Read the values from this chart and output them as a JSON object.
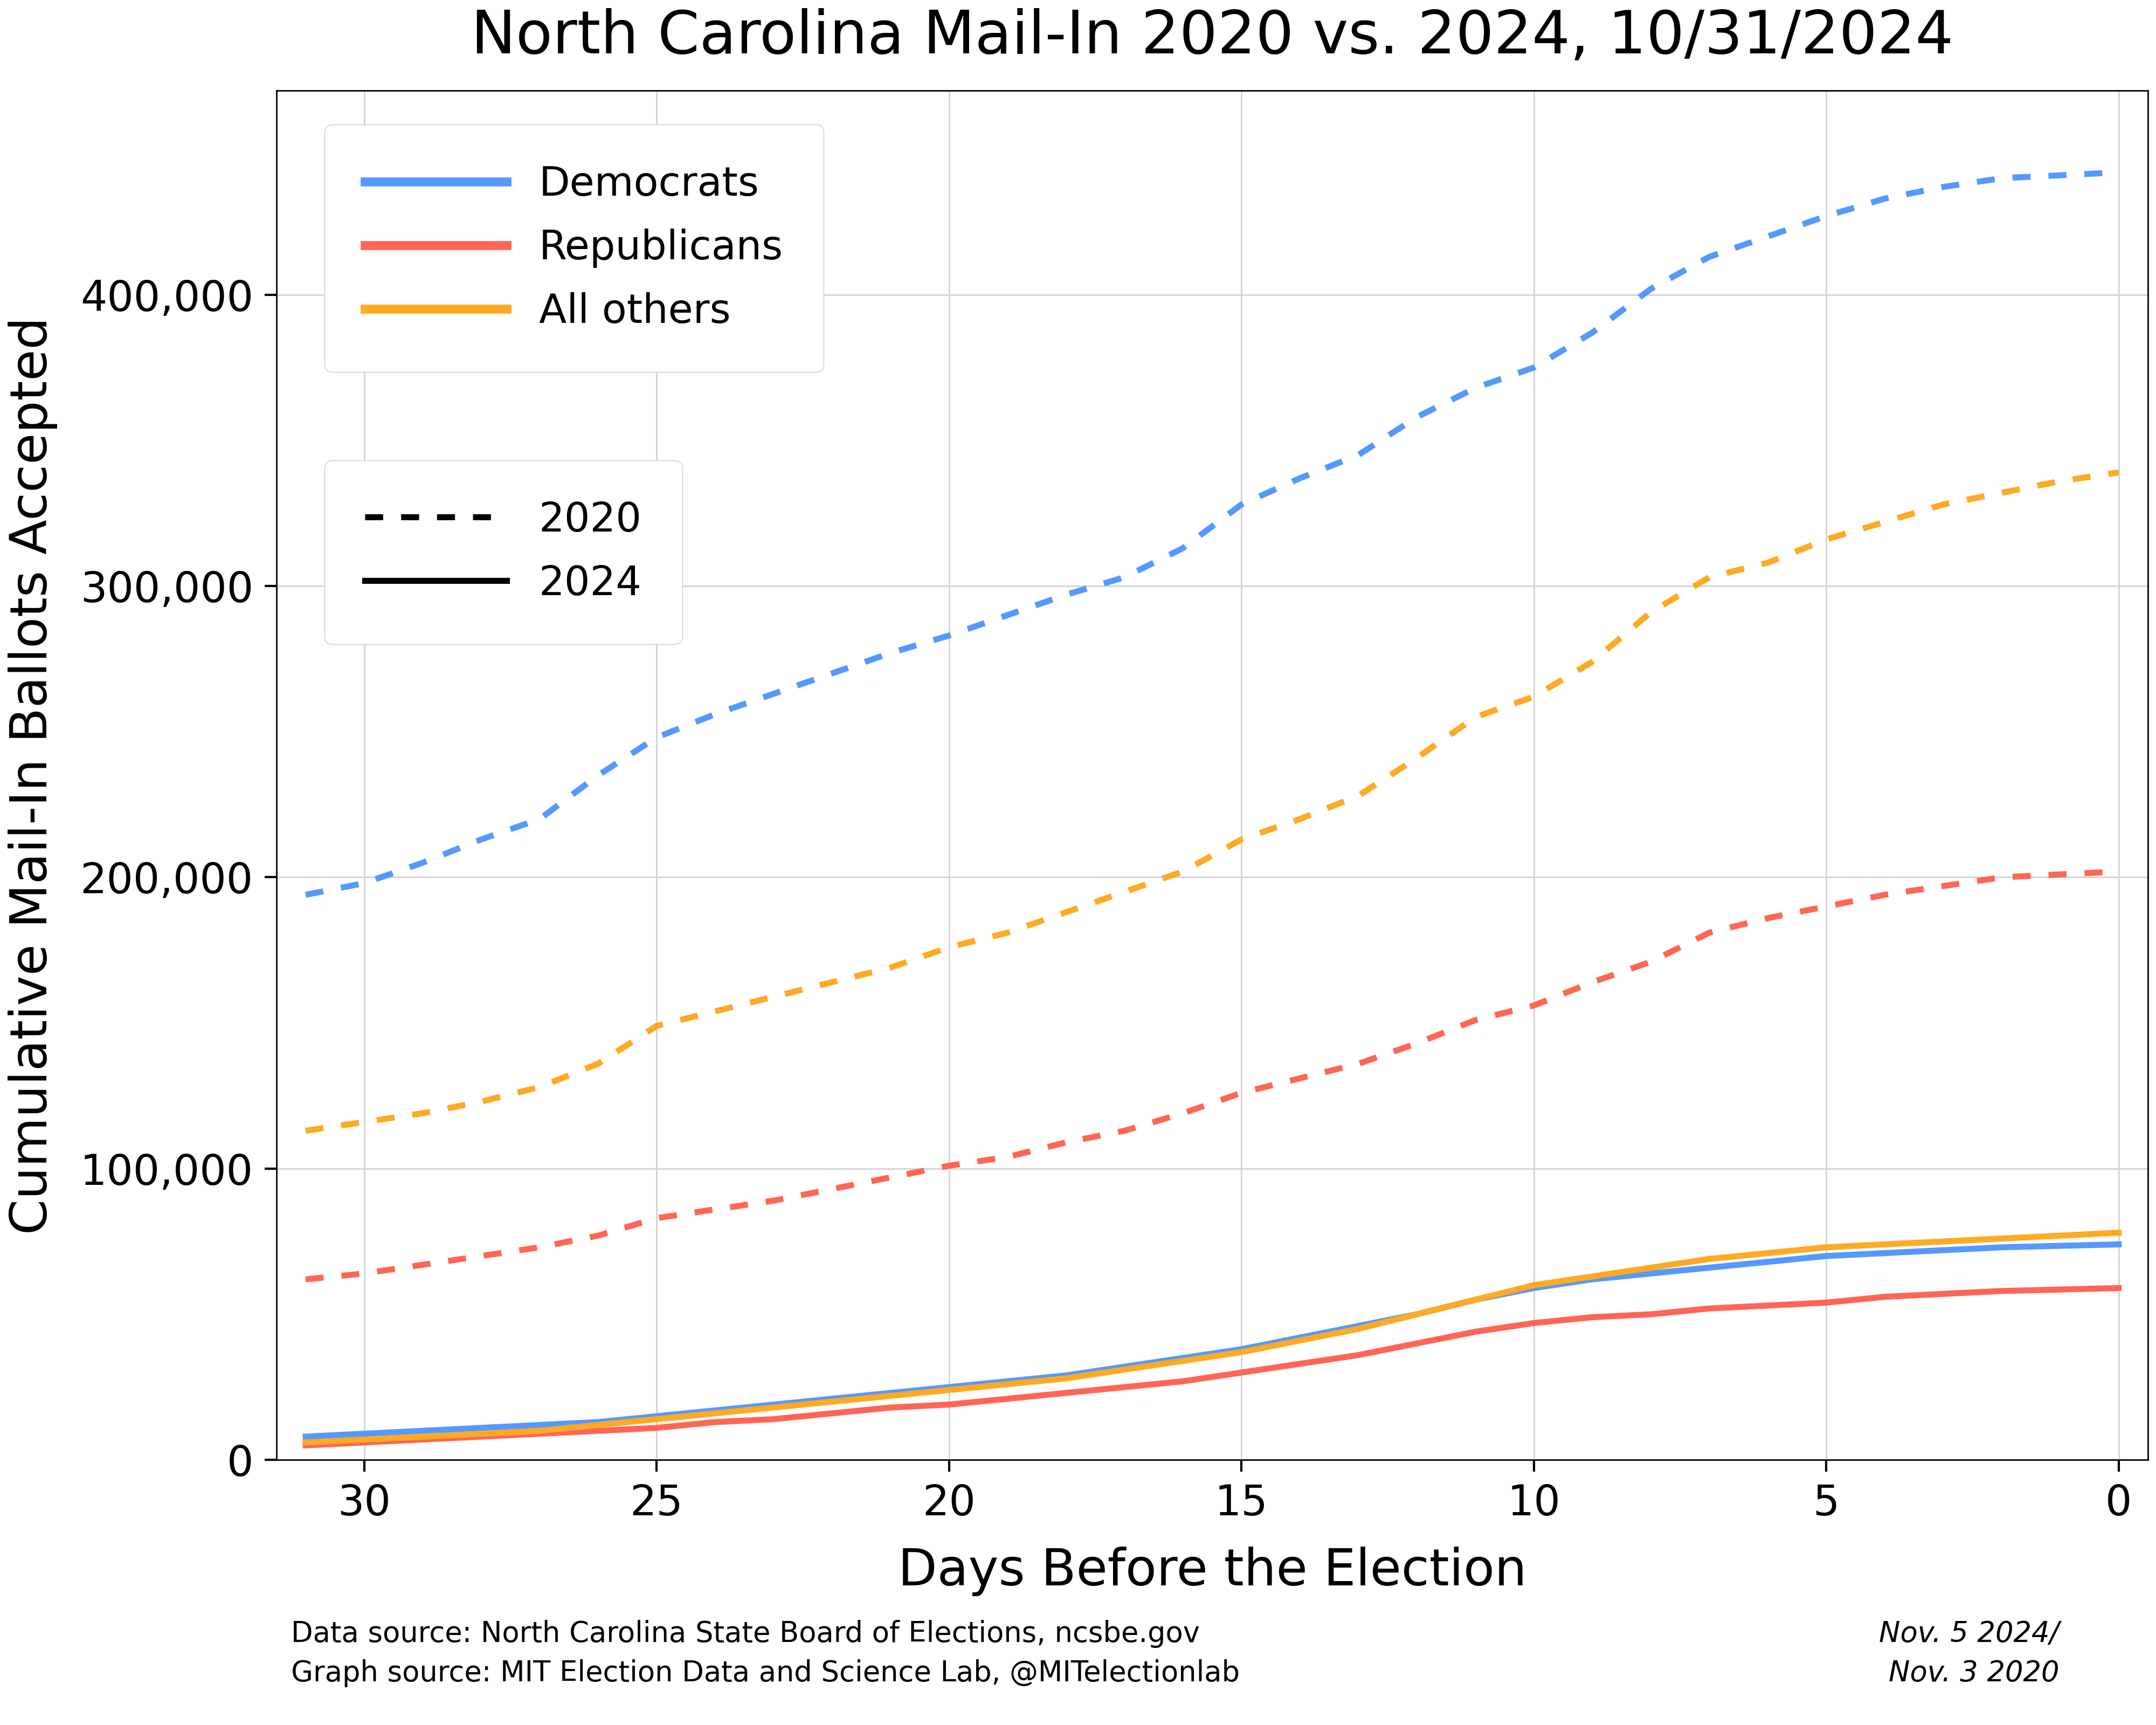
{
  "title": "North Carolina Mail-In 2020 vs. 2024, 10/31/2024",
  "xlabel": "Days Before the Election",
  "ylabel": "Cumulative Mail-In Ballots Accepted",
  "footnote_date": "Nov. 5 2024/\nNov. 3 2020",
  "footnote_source": "Data source: North Carolina State Board of Elections, ncsbe.gov\nGraph source: MIT Election Data and Science Lab, @MITelectionlab",
  "colors": {
    "dem": "#5599ff",
    "rep": "#ff6655",
    "oth": "#ffaa22"
  },
  "days": [
    31,
    30,
    29,
    28,
    27,
    26,
    25,
    24,
    23,
    22,
    21,
    20,
    19,
    18,
    17,
    16,
    15,
    14,
    13,
    12,
    11,
    10,
    9,
    8,
    7,
    6,
    5,
    4,
    3,
    2,
    1,
    0
  ],
  "dem_2020": [
    194000,
    198000,
    205000,
    213000,
    220000,
    235000,
    248000,
    256000,
    263000,
    270000,
    277000,
    283000,
    290000,
    297000,
    303000,
    313000,
    328000,
    337000,
    345000,
    358000,
    368000,
    375000,
    387000,
    402000,
    413000,
    420000,
    427000,
    433000,
    437000,
    440000,
    441000,
    442000
  ],
  "rep_2020": [
    62000,
    64000,
    67000,
    70000,
    73000,
    77000,
    83000,
    86000,
    89000,
    93000,
    97000,
    101000,
    104000,
    109000,
    113000,
    119000,
    126000,
    131000,
    136000,
    143000,
    151000,
    156000,
    164000,
    171000,
    181000,
    186000,
    190000,
    194000,
    197000,
    200000,
    201000,
    202000
  ],
  "oth_2020": [
    113000,
    116000,
    119000,
    123000,
    128000,
    136000,
    149000,
    154000,
    159000,
    164000,
    169000,
    176000,
    181000,
    188000,
    195000,
    202000,
    213000,
    220000,
    228000,
    241000,
    255000,
    262000,
    274000,
    291000,
    303000,
    308000,
    316000,
    322000,
    328000,
    332000,
    336000,
    339000
  ],
  "dem_2024": [
    8000,
    9000,
    10000,
    11000,
    12000,
    13000,
    15000,
    17000,
    19000,
    21000,
    23000,
    25000,
    27000,
    29000,
    32000,
    35000,
    38000,
    42000,
    46000,
    50000,
    55000,
    59000,
    62000,
    64000,
    66000,
    68000,
    70000,
    71000,
    72000,
    73000,
    73500,
    74000
  ],
  "rep_2024": [
    5000,
    6000,
    7000,
    8000,
    9000,
    10000,
    11000,
    13000,
    14000,
    16000,
    18000,
    19000,
    21000,
    23000,
    25000,
    27000,
    30000,
    33000,
    36000,
    40000,
    44000,
    47000,
    49000,
    50000,
    52000,
    53000,
    54000,
    56000,
    57000,
    58000,
    58500,
    59000
  ],
  "oth_2024": [
    6000,
    7000,
    8000,
    9000,
    10000,
    12000,
    14000,
    16000,
    18000,
    20000,
    22000,
    24000,
    26000,
    28000,
    31000,
    34000,
    37000,
    41000,
    45000,
    50000,
    55000,
    60000,
    63000,
    66000,
    69000,
    71000,
    73000,
    74000,
    75000,
    76000,
    77000,
    78000
  ],
  "ylim": [
    0,
    470000
  ],
  "yticks": [
    0,
    100000,
    200000,
    300000,
    400000
  ],
  "xticks": [
    0,
    5,
    10,
    15,
    20,
    25,
    30
  ],
  "xlim": [
    31.5,
    -0.5
  ]
}
